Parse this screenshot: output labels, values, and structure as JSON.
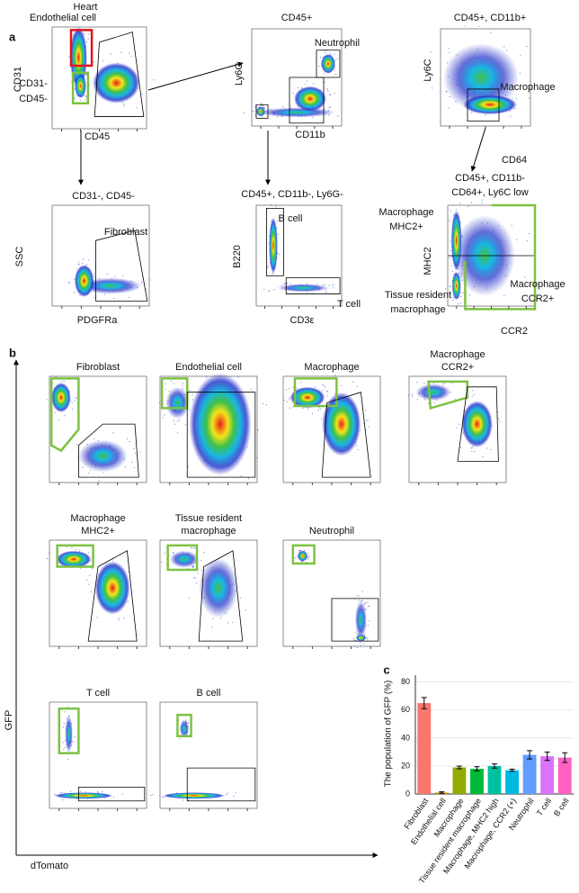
{
  "panel_a": {
    "label": "a",
    "plots": [
      {
        "title": [
          "Heart",
          "Endothelial cell"
        ],
        "ylabel": "CD31",
        "xlabel": "CD45",
        "gates": [
          "CD31-",
          "CD45-"
        ]
      },
      {
        "title": [
          "CD45+"
        ],
        "ylabel": "Ly6G",
        "xlabel": "CD11b",
        "gates": [
          "Neutrophil"
        ]
      },
      {
        "title": [
          "CD45+, CD11b+"
        ],
        "ylabel": "Ly6C",
        "xlabel": "CD64",
        "gates": [
          "Macrophage"
        ]
      },
      {
        "title": [
          "CD31-, CD45-"
        ],
        "ylabel": "SSC",
        "xlabel": "PDGFRa",
        "gates": [
          "Fibroblast"
        ]
      },
      {
        "title": [
          "CD45+, CD11b-, Ly6G-"
        ],
        "ylabel": "B220",
        "xlabel": "CD3ε",
        "gates": [
          "B cell",
          "T cell"
        ]
      },
      {
        "title": [
          "CD45+, CD11b-",
          "CD64+, Ly6C low"
        ],
        "ylabel": "MHC2",
        "xlabel": "CCR2",
        "gates": [
          "Macrophage",
          "MHC2+",
          "Macrophage",
          "CCR2+",
          "Tissue resident",
          "macrophage"
        ]
      }
    ]
  },
  "panel_b": {
    "label": "b",
    "ylabel": "GFP",
    "xlabel": "dTomato",
    "plots": [
      {
        "title": [
          "Fibroblast"
        ]
      },
      {
        "title": [
          "Endothelial cell"
        ]
      },
      {
        "title": [
          "Macrophage"
        ]
      },
      {
        "title": [
          "Macrophage",
          "CCR2+"
        ]
      },
      {
        "title": [
          "Macrophage",
          "MHC2+"
        ]
      },
      {
        "title": [
          "Tissue resident",
          "macrophage"
        ]
      },
      {
        "title": [
          "Neutrophil"
        ]
      },
      {
        "title": [
          "T cell"
        ]
      },
      {
        "title": [
          "B cell"
        ]
      }
    ]
  },
  "chart_data": {
    "type": "bar",
    "panel_label": "c",
    "y_label": "The population of GFP (%)",
    "categories": [
      "Fibroblast",
      "Endothelial cell",
      "Macrophage",
      "Tissue resident macrophage",
      "Macrophage, MHC2 high",
      "Macrophage, CCR2 (+)",
      "Neutrophil",
      "T cell",
      "B cell"
    ],
    "values": [
      65,
      1,
      19,
      18,
      20,
      17,
      28,
      27,
      26
    ],
    "errors": [
      4,
      0.5,
      1,
      1.5,
      1.5,
      0.8,
      3,
      3,
      3.5
    ],
    "colors": [
      "#f8766d",
      "#d39200",
      "#93aa00",
      "#00ba38",
      "#00c19f",
      "#00b9e3",
      "#619cff",
      "#db72fb",
      "#ff61c3"
    ],
    "ylim": [
      0,
      85
    ],
    "yticks": [
      0,
      20,
      40,
      60,
      80
    ],
    "grid": true
  }
}
